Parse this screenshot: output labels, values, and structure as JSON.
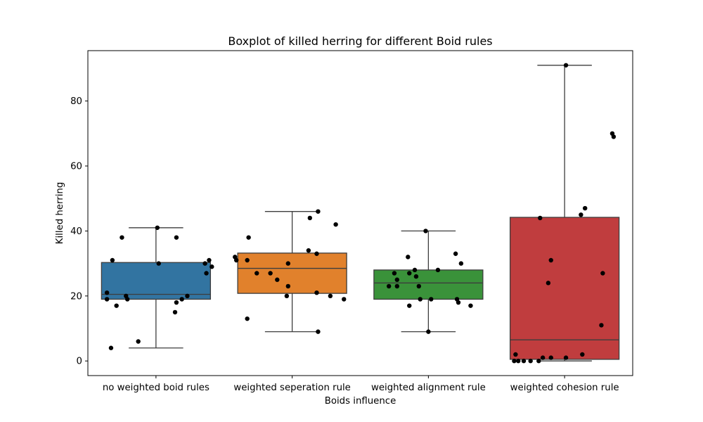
{
  "chart_data": {
    "type": "box",
    "title": "Boxplot of killed herring for different Boid rules",
    "xlabel": "Boids influence",
    "ylabel": "Killed herring",
    "ylim": [
      -4.5,
      95.5
    ],
    "yticks": [
      0,
      20,
      40,
      60,
      80
    ],
    "grid": false,
    "categories": [
      "no weighted boid rules",
      "weighted seperation rule",
      "weighted alignment rule",
      "weighted cohesion rule"
    ],
    "colors": [
      "#3274a1",
      "#e1812c",
      "#3a923a",
      "#c03d3e"
    ],
    "point_color": "#000000",
    "boxes": [
      {
        "whisker_low": 4,
        "q1": 19,
        "median": 20.5,
        "q3": 30.3,
        "whisker_high": 41
      },
      {
        "whisker_low": 9,
        "q1": 20.8,
        "median": 28.5,
        "q3": 33.2,
        "whisker_high": 46
      },
      {
        "whisker_low": 9,
        "q1": 19,
        "median": 24,
        "q3": 28,
        "whisker_high": 40
      },
      {
        "whisker_low": 0,
        "q1": 0.5,
        "median": 6.5,
        "q3": 44.2,
        "whisker_high": 91
      }
    ],
    "points": [
      [
        [
          41,
          0.01
        ],
        [
          38,
          -0.25
        ],
        [
          38,
          0.15
        ],
        [
          31,
          -0.32
        ],
        [
          31,
          0.39
        ],
        [
          30,
          0.02
        ],
        [
          30,
          0.36
        ],
        [
          29,
          0.41
        ],
        [
          27,
          0.37
        ],
        [
          21,
          -0.36
        ],
        [
          20,
          -0.22
        ],
        [
          20,
          0.23
        ],
        [
          19,
          -0.36
        ],
        [
          19,
          -0.21
        ],
        [
          19,
          0.19
        ],
        [
          18,
          0.15
        ],
        [
          17,
          -0.29
        ],
        [
          15,
          0.14
        ],
        [
          6,
          -0.13
        ],
        [
          4,
          -0.33
        ]
      ],
      [
        [
          46,
          0.19
        ],
        [
          44,
          0.13
        ],
        [
          42,
          0.32
        ],
        [
          38,
          -0.32
        ],
        [
          34,
          0.12
        ],
        [
          33,
          0.18
        ],
        [
          32,
          -0.42
        ],
        [
          31,
          -0.41
        ],
        [
          31,
          -0.33
        ],
        [
          30,
          -0.03
        ],
        [
          27,
          -0.26
        ],
        [
          27,
          -0.16
        ],
        [
          25,
          -0.11
        ],
        [
          23,
          -0.03
        ],
        [
          21,
          0.18
        ],
        [
          20,
          -0.04
        ],
        [
          20,
          0.28
        ],
        [
          19,
          0.38
        ],
        [
          13,
          -0.33
        ],
        [
          9,
          0.19
        ]
      ],
      [
        [
          40,
          -0.02
        ],
        [
          33,
          0.2
        ],
        [
          32,
          -0.15
        ],
        [
          30,
          0.24
        ],
        [
          28,
          -0.1
        ],
        [
          28,
          0.07
        ],
        [
          27,
          -0.25
        ],
        [
          27,
          -0.14
        ],
        [
          26,
          -0.09
        ],
        [
          25,
          -0.23
        ],
        [
          23,
          -0.29
        ],
        [
          23,
          -0.23
        ],
        [
          23,
          -0.07
        ],
        [
          19,
          -0.06
        ],
        [
          19,
          0.02
        ],
        [
          19,
          0.21
        ],
        [
          18,
          0.22
        ],
        [
          17,
          -0.14
        ],
        [
          17,
          0.31
        ],
        [
          9,
          0.0
        ]
      ],
      [
        [
          91,
          0.01
        ],
        [
          70,
          0.35
        ],
        [
          69,
          0.36
        ],
        [
          47,
          0.15
        ],
        [
          45,
          0.12
        ],
        [
          44,
          -0.18
        ],
        [
          31,
          -0.1
        ],
        [
          27,
          0.28
        ],
        [
          24,
          -0.12
        ],
        [
          11,
          0.27
        ],
        [
          2,
          -0.36
        ],
        [
          2,
          0.13
        ],
        [
          1,
          -0.16
        ],
        [
          1,
          -0.1
        ],
        [
          1,
          0.01
        ],
        [
          0,
          -0.37
        ],
        [
          0,
          -0.34
        ],
        [
          0,
          -0.3
        ],
        [
          0,
          -0.25
        ],
        [
          0,
          -0.19
        ]
      ]
    ]
  }
}
